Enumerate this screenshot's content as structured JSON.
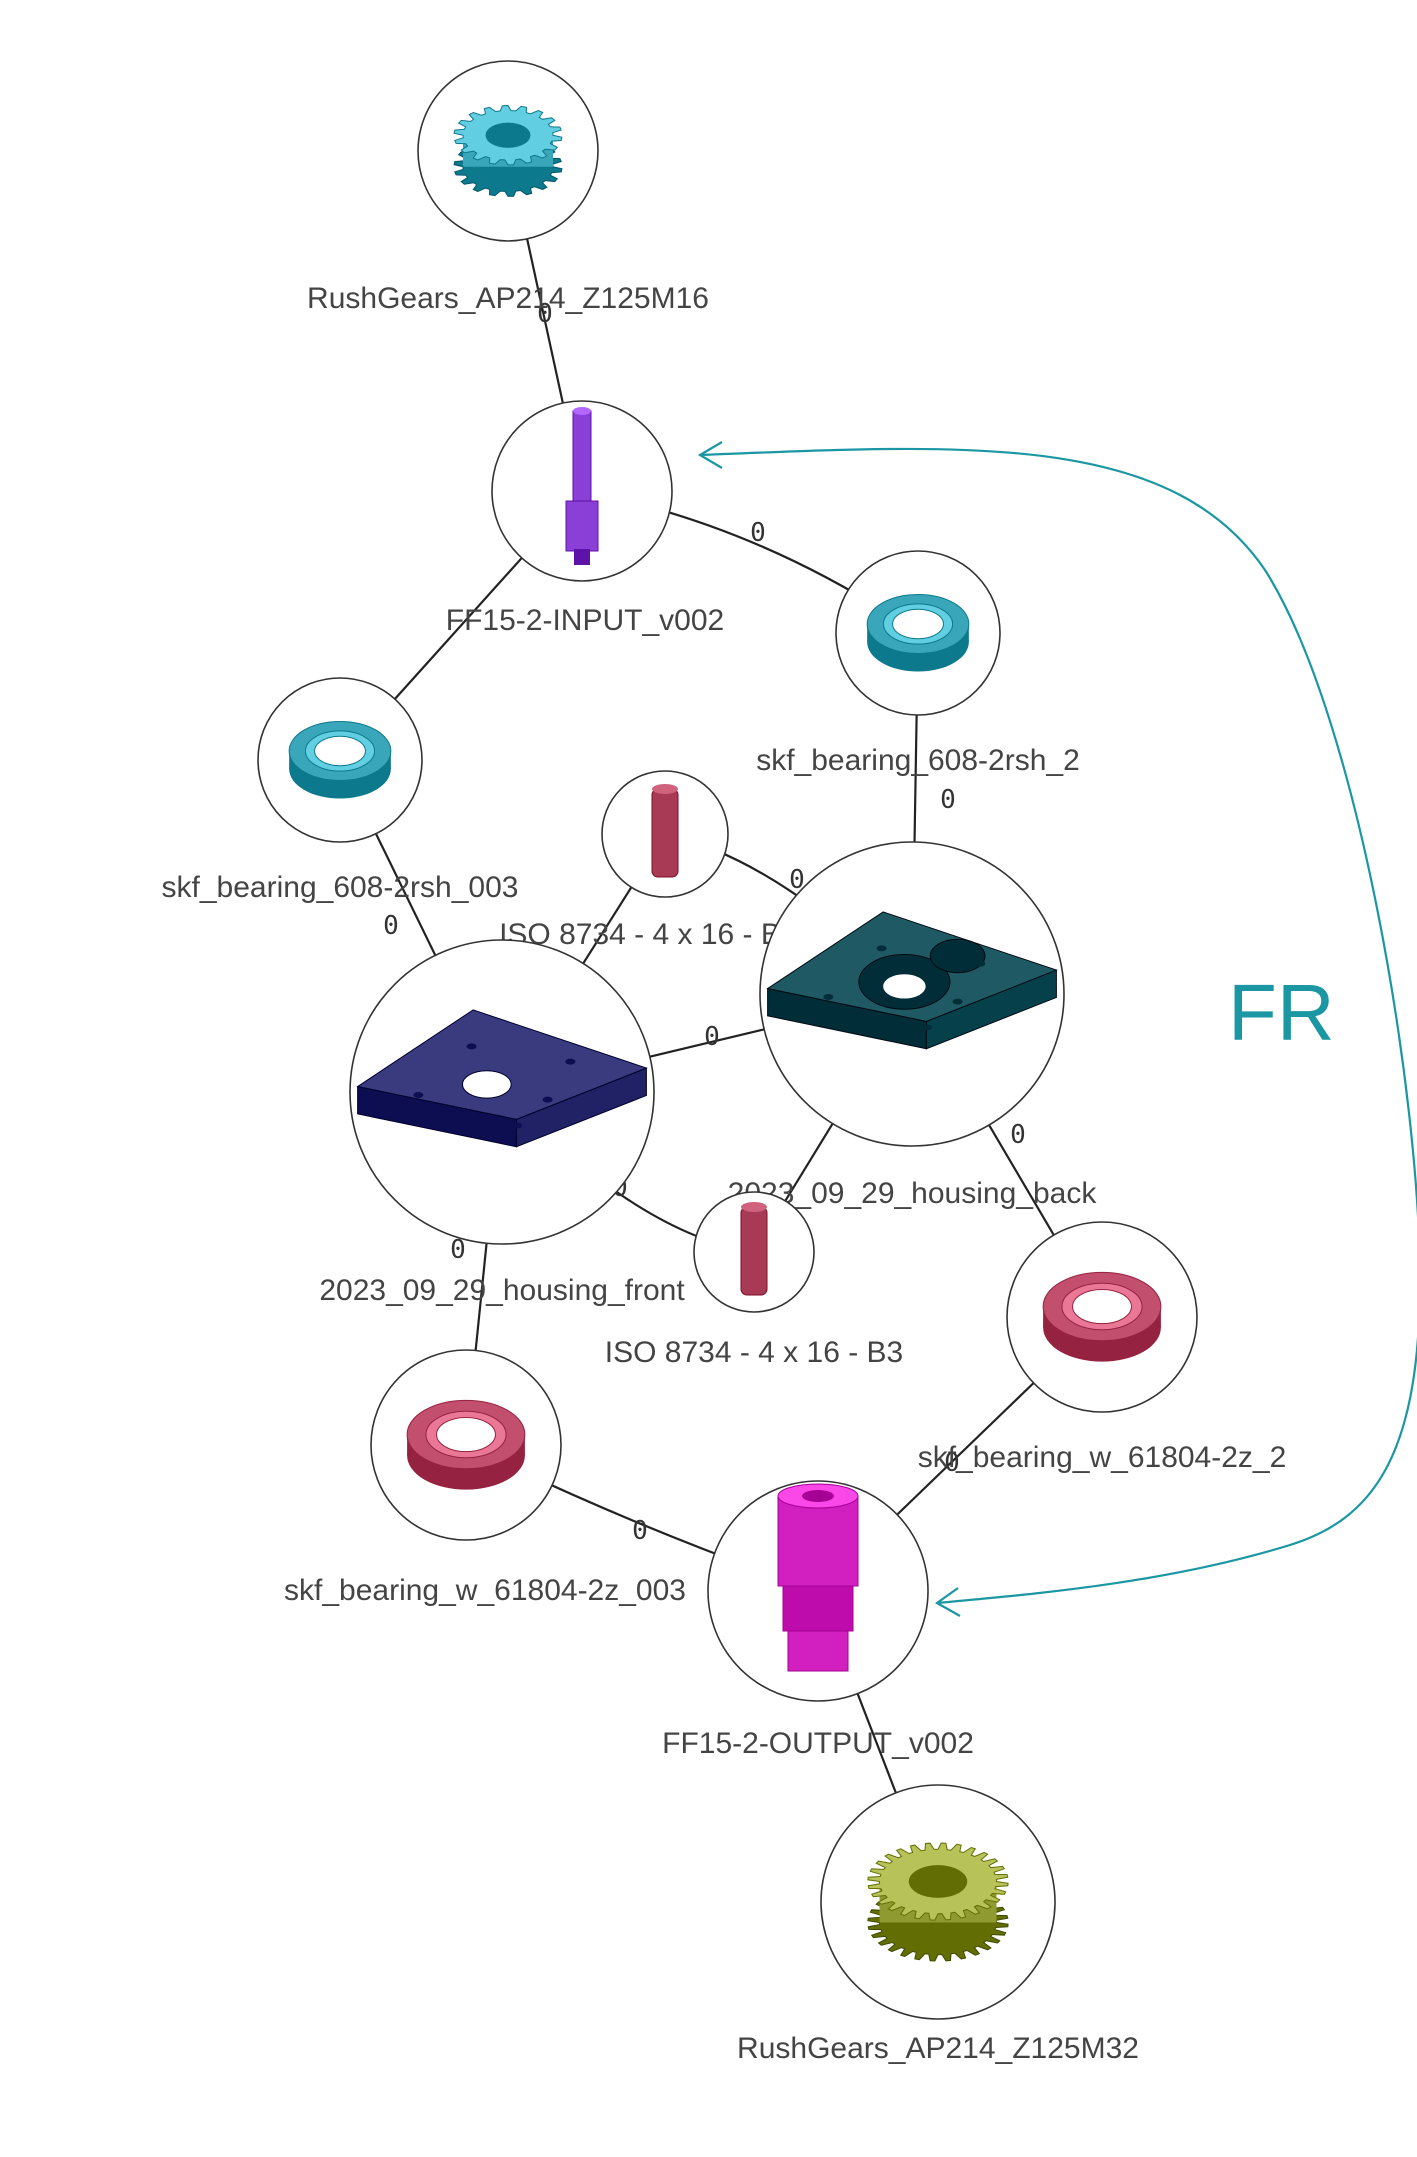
{
  "nodes": [
    {
      "id": "gear_in",
      "label": "RushGears_AP214_Z125M16",
      "icon": "spur-gear-icon",
      "color": "#3aa6b9"
    },
    {
      "id": "input",
      "label": "FF15-2-INPUT_v002",
      "icon": "input-shaft-icon",
      "color": "#8a3fd6"
    },
    {
      "id": "brg2",
      "label": "skf_bearing_608-2rsh_2",
      "icon": "ball-bearing-icon",
      "color": "#3aa6b9"
    },
    {
      "id": "brg003",
      "label": "skf_bearing_608-2rsh_003",
      "icon": "ball-bearing-icon",
      "color": "#3aa6b9"
    },
    {
      "id": "pinB004",
      "label": "ISO 8734 - 4 x 16 - B004",
      "icon": "dowel-pin-icon",
      "color": "#a83a55"
    },
    {
      "id": "housing_back",
      "label": "2023_09_29_housing_back",
      "icon": "housing-plate-icon",
      "color": "#1f5a64"
    },
    {
      "id": "housing_front",
      "label": "2023_09_29_housing_front",
      "icon": "housing-plate-icon",
      "color": "#3a3a7e"
    },
    {
      "id": "pinB3",
      "label": "ISO 8734 - 4 x 16 - B3",
      "icon": "dowel-pin-icon",
      "color": "#a83a55"
    },
    {
      "id": "brgw2",
      "label": "skf_bearing_w_61804-2z_2",
      "icon": "ring-bearing-icon",
      "color": "#c24f6e"
    },
    {
      "id": "brgw003",
      "label": "skf_bearing_w_61804-2z_003",
      "icon": "ring-bearing-icon",
      "color": "#c24f6e"
    },
    {
      "id": "output",
      "label": "FF15-2-OUTPUT_v002",
      "icon": "output-shaft-icon",
      "color": "#d21fc0"
    },
    {
      "id": "gear_out",
      "label": "RushGears_AP214_Z125M32",
      "icon": "spur-gear-icon",
      "color": "#8f9a30"
    }
  ],
  "edges": [
    {
      "from": "gear_in",
      "to": "input",
      "label": "0"
    },
    {
      "from": "input",
      "to": "brg2",
      "label": "0"
    },
    {
      "from": "input",
      "to": "brg003",
      "label": ""
    },
    {
      "from": "brg2",
      "to": "housing_back",
      "label": "0"
    },
    {
      "from": "brg003",
      "to": "housing_front",
      "label": "0"
    },
    {
      "from": "pinB004",
      "to": "housing_back",
      "label": "0"
    },
    {
      "from": "pinB004",
      "to": "housing_front",
      "label": ""
    },
    {
      "from": "housing_front",
      "to": "housing_back",
      "label": "0"
    },
    {
      "from": "housing_front",
      "to": "pinB3",
      "label": "0"
    },
    {
      "from": "housing_back",
      "to": "pinB3",
      "label": ""
    },
    {
      "from": "housing_back",
      "to": "brgw2",
      "label": "0"
    },
    {
      "from": "housing_front",
      "to": "brgw003",
      "label": "0"
    },
    {
      "from": "brgw2",
      "to": "output",
      "label": "0"
    },
    {
      "from": "brgw003",
      "to": "output",
      "label": "0"
    },
    {
      "from": "output",
      "to": "gear_out",
      "label": ""
    }
  ],
  "relation": {
    "label": "FR",
    "from": "input",
    "to": "output",
    "color": "#1a97a3"
  }
}
